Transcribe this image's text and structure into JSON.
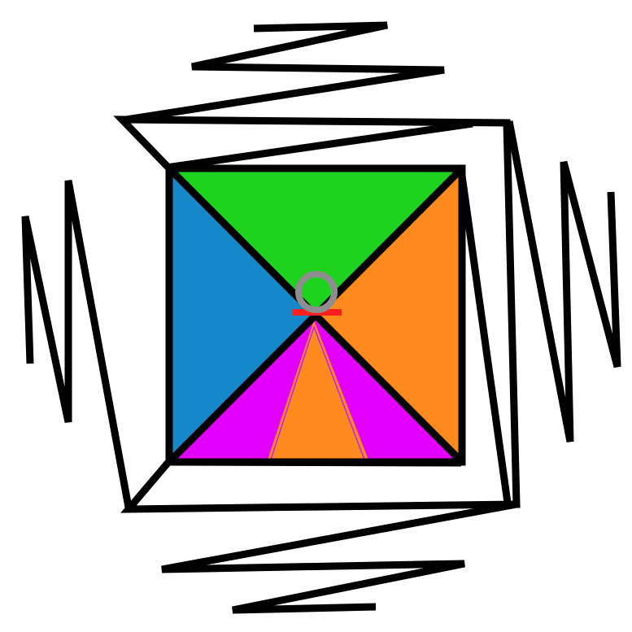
{
  "colors": {
    "background": "#ffffff",
    "outline": "#000000",
    "top_triangle": "#1ed31e",
    "left_triangle": "#1588c9",
    "right_triangle": "#fd8a1c",
    "bottom_triangle": "#e300ff",
    "inner_spike": "#fd8a1c",
    "ring": "#8e8e8e",
    "red_bar": "#ff2020"
  },
  "icons": {
    "ring": "ring-icon",
    "red_bar": "bar-mark"
  }
}
